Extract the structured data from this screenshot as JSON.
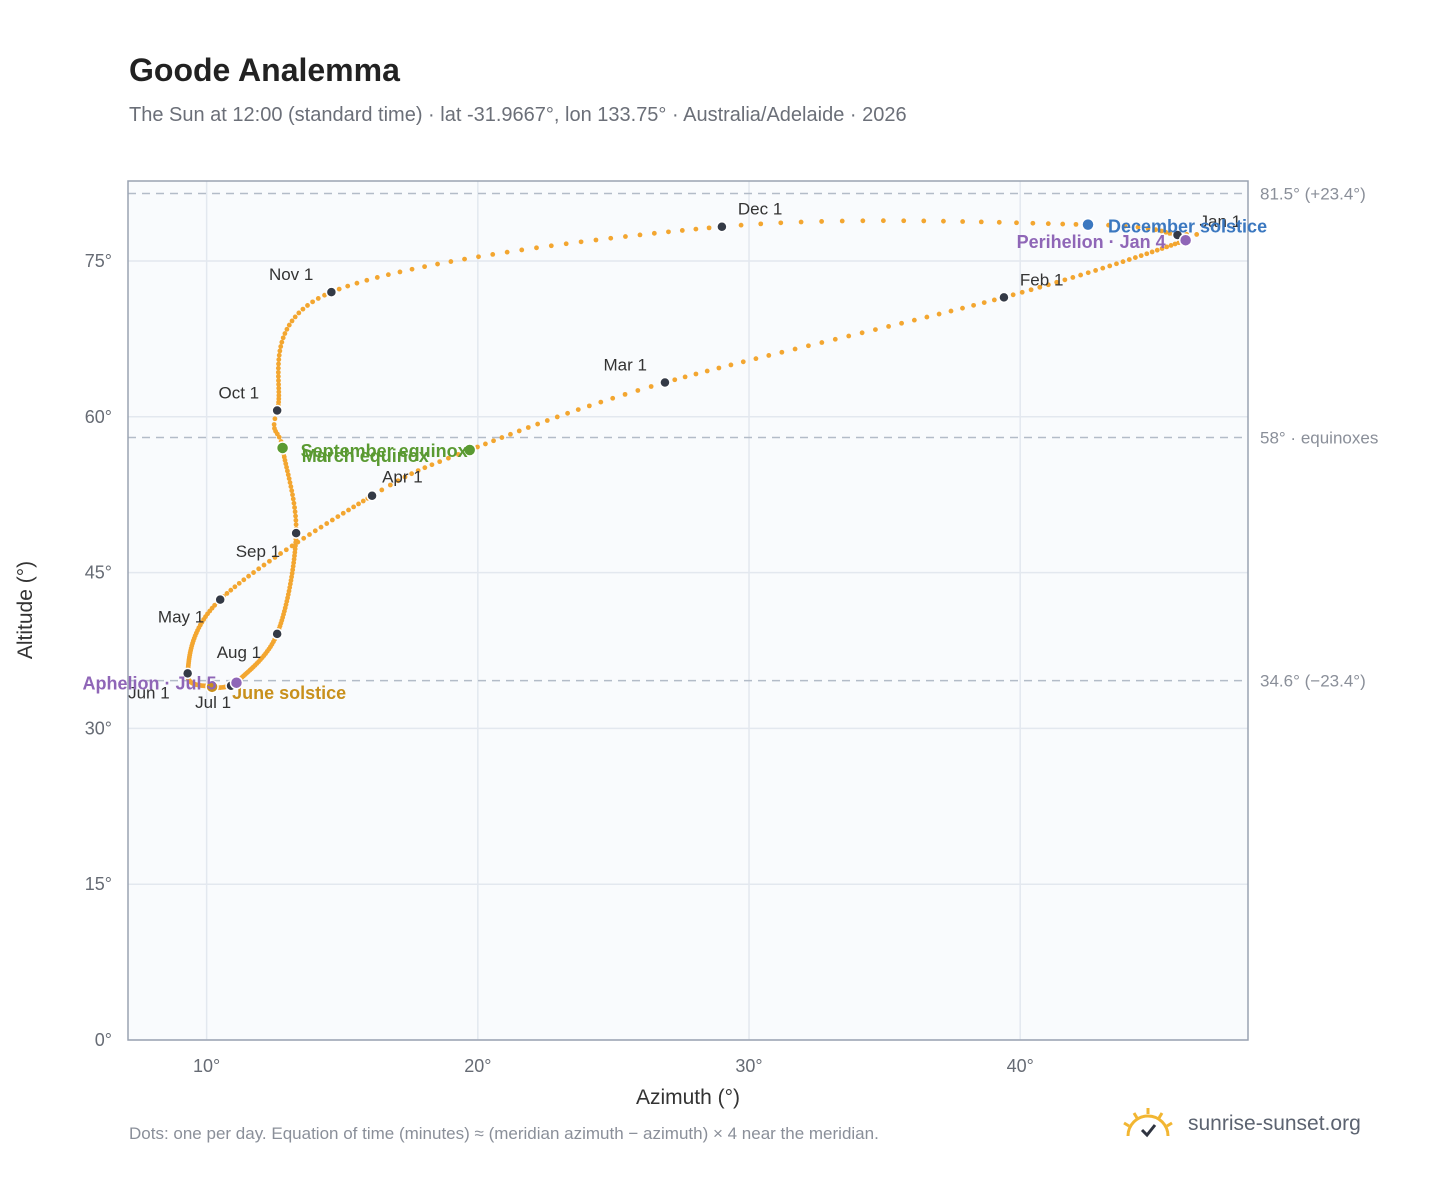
{
  "header": {
    "title": "Goode Analemma",
    "subtitle": "The Sun at 12:00 (standard time) · lat -31.9667°, lon 133.75° · Australia/Adelaide · 2026"
  },
  "footer": {
    "note": "Dots: one per day. Equation of time (minutes) ≈ (meridian azimuth − azimuth) × 4 near the meridian.",
    "brand": "sunrise-sunset.org",
    "brand_icon": "sun-logo-icon"
  },
  "colors": {
    "curve": "#f3a630",
    "month_marker": "#343a46",
    "equinox": "#5a9a32",
    "december_solstice": "#3b78c0",
    "june_solstice": "#c8901c",
    "apsis": "#8f66b7",
    "grid": "#e3e8ef",
    "plot_bg": "#f9fbfd",
    "frame": "#9aa3b2",
    "ref_line": "#b3bcc8"
  },
  "chart_data": {
    "type": "scatter",
    "title": "Goode Analemma",
    "xlabel": "Azimuth (°)",
    "ylabel": "Altitude (°)",
    "xlim": [
      7.1,
      48.4
    ],
    "ylim": [
      0,
      82.7
    ],
    "x_ticks": [
      10,
      20,
      30,
      40
    ],
    "x_tick_labels": [
      "10°",
      "20°",
      "30°",
      "40°"
    ],
    "y_ticks": [
      0,
      15,
      30,
      45,
      60,
      75
    ],
    "y_tick_labels": [
      "0°",
      "15°",
      "30°",
      "45°",
      "60°",
      "75°"
    ],
    "grid": true,
    "reference_lines": [
      {
        "y": 81.5,
        "label": "81.5° (+23.4°)"
      },
      {
        "y": 58,
        "label": "58° · equinoxes"
      },
      {
        "y": 34.6,
        "label": "34.6° (−23.4°)"
      }
    ],
    "curve_anchors": [
      {
        "date": "Jan 1",
        "day": 1,
        "x": 45.8,
        "y": 77.5
      },
      {
        "date": "Jan 4",
        "day": 4,
        "x": 46.1,
        "y": 77.0
      },
      {
        "date": "Feb 1",
        "day": 32,
        "x": 39.4,
        "y": 71.5
      },
      {
        "date": "Mar 1",
        "day": 60,
        "x": 26.9,
        "y": 63.3
      },
      {
        "date": "Mar 20",
        "day": 79,
        "x": 19.7,
        "y": 56.8
      },
      {
        "date": "Apr 1",
        "day": 91,
        "x": 16.1,
        "y": 52.4
      },
      {
        "date": "May 1",
        "day": 121,
        "x": 10.5,
        "y": 42.4
      },
      {
        "date": "Jun 1",
        "day": 152,
        "x": 9.3,
        "y": 35.3
      },
      {
        "date": "Jun 21",
        "day": 172,
        "x": 10.2,
        "y": 34.0
      },
      {
        "date": "Jul 1",
        "day": 182,
        "x": 10.9,
        "y": 34.1
      },
      {
        "date": "Jul 5",
        "day": 186,
        "x": 11.1,
        "y": 34.4
      },
      {
        "date": "Aug 1",
        "day": 213,
        "x": 12.6,
        "y": 39.1
      },
      {
        "date": "Sep 1",
        "day": 244,
        "x": 13.3,
        "y": 48.8
      },
      {
        "date": "Sep 23",
        "day": 266,
        "x": 12.8,
        "y": 57.0
      },
      {
        "date": "Oct 1",
        "day": 274,
        "x": 12.6,
        "y": 60.6
      },
      {
        "date": "Nov 1",
        "day": 305,
        "x": 14.6,
        "y": 72.0
      },
      {
        "date": "Dec 1",
        "day": 335,
        "x": 29.0,
        "y": 78.3
      },
      {
        "date": "Dec 21",
        "day": 355,
        "x": 42.5,
        "y": 78.5
      },
      {
        "date": "Dec 31",
        "day": 365,
        "x": 45.8,
        "y": 77.5
      }
    ],
    "month_markers": [
      {
        "label": "Jan 1",
        "x": 45.8,
        "y": 77.5
      },
      {
        "label": "Feb 1",
        "x": 39.4,
        "y": 71.5
      },
      {
        "label": "Mar 1",
        "x": 26.9,
        "y": 63.3
      },
      {
        "label": "Apr 1",
        "x": 16.1,
        "y": 52.4
      },
      {
        "label": "May 1",
        "x": 10.5,
        "y": 42.4
      },
      {
        "label": "Jun 1",
        "x": 9.3,
        "y": 35.3
      },
      {
        "label": "Jul 1",
        "x": 10.9,
        "y": 34.1
      },
      {
        "label": "Aug 1",
        "x": 12.6,
        "y": 39.1
      },
      {
        "label": "Sep 1",
        "x": 13.3,
        "y": 48.8
      },
      {
        "label": "Oct 1",
        "x": 12.6,
        "y": 60.6
      },
      {
        "label": "Nov 1",
        "x": 14.6,
        "y": 72.0
      },
      {
        "label": "Dec 1",
        "x": 29.0,
        "y": 78.3
      }
    ],
    "events": [
      {
        "label": "March equinox",
        "x": 19.7,
        "y": 56.8,
        "color": "#5a9a32"
      },
      {
        "label": "September equinox",
        "x": 12.8,
        "y": 57.0,
        "color": "#5a9a32"
      },
      {
        "label": "December solstice",
        "x": 42.5,
        "y": 78.5,
        "color": "#3b78c0"
      },
      {
        "label": "June solstice",
        "x": 10.2,
        "y": 34.0,
        "color": "#c8901c"
      },
      {
        "label": "Perihelion · Jan 4",
        "x": 46.1,
        "y": 77.0,
        "color": "#8f66b7"
      },
      {
        "label": "Aphelion · Jul 5",
        "x": 11.1,
        "y": 34.4,
        "color": "#8f66b7"
      }
    ]
  }
}
